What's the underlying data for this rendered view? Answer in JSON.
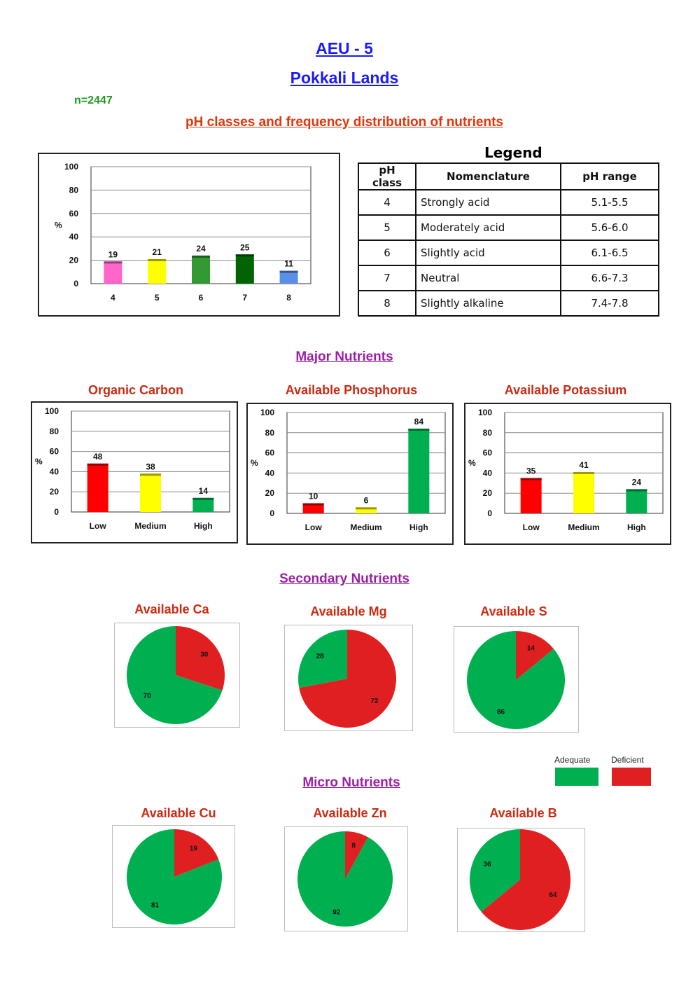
{
  "header": {
    "title": "AEU - 5",
    "subtitle": "Pokkali Lands",
    "n_label": "n=2447"
  },
  "ph_section": {
    "title": "pH classes and frequency distribution of nutrients",
    "legend": {
      "caption": "Legend",
      "columns": [
        "pH class",
        "Nomenclature",
        "pH range"
      ],
      "rows": [
        [
          "4",
          "Strongly acid",
          "5.1-5.5"
        ],
        [
          "5",
          "Moderately acid",
          "5.6-6.0"
        ],
        [
          "6",
          "Slightly acid",
          "6.1-6.5"
        ],
        [
          "7",
          "Neutral",
          "6.6-7.3"
        ],
        [
          "8",
          "Slightly alkaline",
          "7.4-7.8"
        ]
      ]
    }
  },
  "sections": {
    "major": "Major Nutrients",
    "secondary": "Secondary Nutrients",
    "micro": "Micro Nutrients"
  },
  "pie_key": {
    "adequate_label": "Adequate",
    "deficient_label": "Deficient",
    "adequate_color": "#00b050",
    "deficient_color": "#e02020"
  },
  "chart_data": [
    {
      "id": "ph",
      "type": "bar",
      "title": "",
      "ylabel": "%",
      "ylim": [
        0,
        100
      ],
      "yticks": [
        0,
        20,
        40,
        60,
        80,
        100
      ],
      "grid": true,
      "categories": [
        "4",
        "5",
        "6",
        "7",
        "8"
      ],
      "values": [
        19,
        21,
        24,
        25,
        11
      ],
      "colors": [
        "#ff66cc",
        "#ffff00",
        "#339933",
        "#006400",
        "#5b8fe6"
      ]
    },
    {
      "id": "oc",
      "type": "bar",
      "title": "Organic Carbon",
      "ylabel": "%",
      "ylim": [
        0,
        100
      ],
      "yticks": [
        0,
        20,
        40,
        60,
        80,
        100
      ],
      "grid": true,
      "categories": [
        "Low",
        "Medium",
        "High"
      ],
      "values": [
        48,
        38,
        14
      ],
      "colors": [
        "#ff0000",
        "#ffff00",
        "#00b050"
      ]
    },
    {
      "id": "p",
      "type": "bar",
      "title": "Available Phosphorus",
      "ylabel": "%",
      "ylim": [
        0,
        100
      ],
      "yticks": [
        0,
        20,
        40,
        60,
        80,
        100
      ],
      "grid": true,
      "categories": [
        "Low",
        "Medium",
        "High"
      ],
      "values": [
        10,
        6,
        84
      ],
      "colors": [
        "#ff0000",
        "#ffff00",
        "#00b050"
      ]
    },
    {
      "id": "k",
      "type": "bar",
      "title": "Available Potassium",
      "ylabel": "%",
      "ylim": [
        0,
        100
      ],
      "yticks": [
        0,
        20,
        40,
        60,
        80,
        100
      ],
      "grid": true,
      "categories": [
        "Low",
        "Medium",
        "High"
      ],
      "values": [
        35,
        41,
        24
      ],
      "colors": [
        "#ff0000",
        "#ffff00",
        "#00b050"
      ]
    },
    {
      "id": "ca",
      "type": "pie",
      "title": "Available Ca",
      "slices": [
        {
          "label": "Deficient",
          "value": 30
        },
        {
          "label": "Adequate",
          "value": 70
        }
      ]
    },
    {
      "id": "mg",
      "type": "pie",
      "title": "Available Mg",
      "slices": [
        {
          "label": "Deficient",
          "value": 72
        },
        {
          "label": "Adequate",
          "value": 28
        }
      ]
    },
    {
      "id": "s",
      "type": "pie",
      "title": "Available S",
      "slices": [
        {
          "label": "Deficient",
          "value": 14
        },
        {
          "label": "Adequate",
          "value": 86
        }
      ]
    },
    {
      "id": "cu",
      "type": "pie",
      "title": "Available Cu",
      "slices": [
        {
          "label": "Deficient",
          "value": 19
        },
        {
          "label": "Adequate",
          "value": 81
        }
      ]
    },
    {
      "id": "zn",
      "type": "pie",
      "title": "Available Zn",
      "slices": [
        {
          "label": "Deficient",
          "value": 8
        },
        {
          "label": "Adequate",
          "value": 92
        }
      ]
    },
    {
      "id": "b",
      "type": "pie",
      "title": "Available B",
      "slices": [
        {
          "label": "Deficient",
          "value": 64
        },
        {
          "label": "Adequate",
          "value": 36
        }
      ]
    }
  ]
}
